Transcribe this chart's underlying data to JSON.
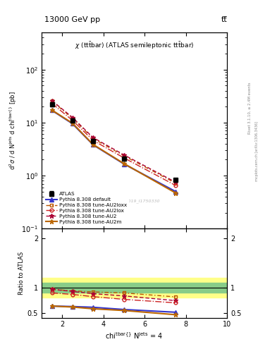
{
  "title_top": "13000 GeV pp",
  "title_right": "tt̅",
  "plot_title": "χ (tt̅bar) (ATLAS semileptonic tt̅bar)",
  "watermark": "ATLAS_2019_I1750330",
  "right_label": "Rivet 3.1.10, ≥ 2.4M events",
  "right_label2": "mcplots.cern.ch [arXiv:1306.3436]",
  "xlim": [
    1,
    10
  ],
  "ylim_main": [
    0.1,
    500
  ],
  "ylim_ratio": [
    0.4,
    2.2
  ],
  "x_data": [
    1.5,
    2.5,
    3.5,
    5.0,
    7.5
  ],
  "atlas_y": [
    22.0,
    11.0,
    4.5,
    2.1,
    0.82
  ],
  "atlas_yerr": [
    1.8,
    0.9,
    0.4,
    0.18,
    0.07
  ],
  "default_y": [
    17.0,
    9.5,
    3.8,
    1.65,
    0.5
  ],
  "au2_y": [
    26.0,
    12.5,
    5.2,
    2.45,
    0.75
  ],
  "au2lox_y": [
    23.0,
    11.0,
    4.6,
    2.15,
    0.65
  ],
  "au2loxx_y": [
    25.5,
    12.0,
    5.0,
    2.35,
    0.72
  ],
  "au2m_y": [
    17.2,
    9.7,
    3.85,
    1.68,
    0.47
  ],
  "ratio_default": [
    0.635,
    0.625,
    0.61,
    0.565,
    0.51
  ],
  "ratio_au2": [
    0.975,
    0.93,
    0.885,
    0.84,
    0.745
  ],
  "ratio_au2lox": [
    0.9,
    0.87,
    0.825,
    0.77,
    0.7
  ],
  "ratio_au2loxx": [
    0.975,
    0.94,
    0.92,
    0.9,
    0.82
  ],
  "ratio_au2m": [
    0.635,
    0.615,
    0.58,
    0.545,
    0.46
  ],
  "color_default": "#3333cc",
  "color_au2": "#aa0033",
  "color_au2lox": "#cc2222",
  "color_au2loxx": "#bb5500",
  "color_au2m": "#bb6600",
  "color_atlas": "#000000",
  "green_band_lo": 0.9,
  "green_band_hi": 1.1,
  "yellow_band_lo": 0.8,
  "yellow_band_hi": 1.2
}
